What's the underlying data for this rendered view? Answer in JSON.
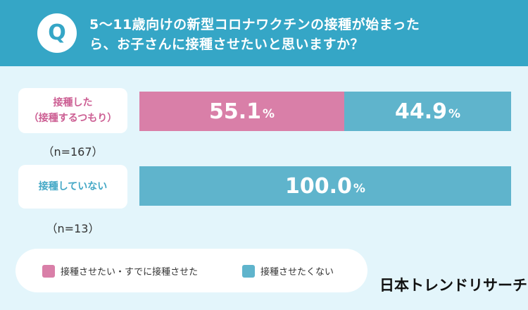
{
  "header": {
    "badge": "Q",
    "question_line1": "5〜11歳向けの新型コロナワクチンの接種が始まった",
    "question_line2": "ら、お子さんに接種させたいと思いますか？"
  },
  "colors": {
    "header": "#35a6c6",
    "want": "#d97fa8",
    "not_want": "#5fb4cc",
    "background": "#e3f5fb"
  },
  "chart_data": {
    "type": "bar",
    "orientation": "horizontal",
    "stacked": true,
    "unit": "%",
    "categories": [
      {
        "label_lines": [
          "接種した",
          "（接種するつもり）"
        ],
        "n": "（n=167）"
      },
      {
        "label_lines": [
          "接種していない"
        ],
        "n": "（n=13）"
      }
    ],
    "series": [
      {
        "name": "接種させたい・すでに接種させた",
        "color": "#d97fa8",
        "values": [
          55.1,
          0.0
        ]
      },
      {
        "name": "接種させたくない",
        "color": "#5fb4cc",
        "values": [
          44.9,
          100.0
        ]
      }
    ],
    "xlim": [
      0,
      100
    ]
  },
  "legend": [
    {
      "label": "接種させたい・すでに接種させた",
      "color": "#d97fa8"
    },
    {
      "label": "接種させたくない",
      "color": "#5fb4cc"
    }
  ],
  "brand": "日本トレンドリサーチ"
}
